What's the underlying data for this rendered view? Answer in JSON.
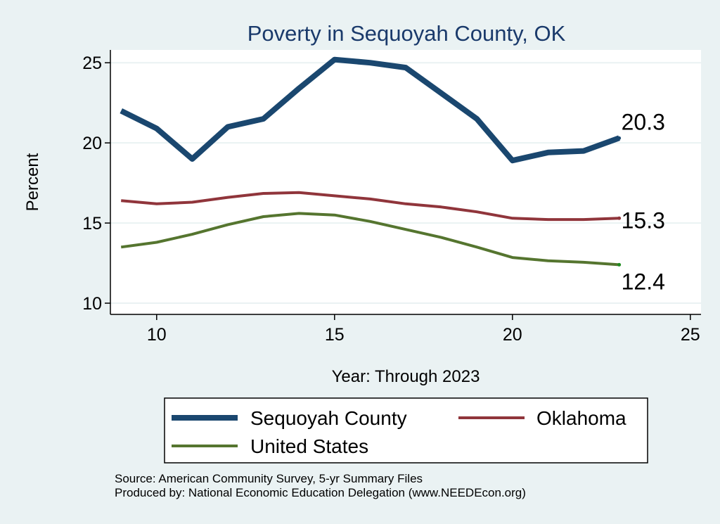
{
  "chart_data": {
    "type": "line",
    "title": "Poverty in Sequoyah County, OK",
    "xlabel": "Year: Through 2023",
    "ylabel": "Percent",
    "xlim": [
      8.7,
      25.3
    ],
    "ylim": [
      9.3,
      25.8
    ],
    "xticks": [
      10,
      15,
      20,
      25
    ],
    "yticks": [
      10,
      15,
      20,
      25
    ],
    "grid": true,
    "series": [
      {
        "name": "Sequoyah County",
        "color": "#1a476f",
        "x": [
          9,
          10,
          11,
          12,
          13,
          14,
          15,
          16,
          17,
          18,
          19,
          20,
          21,
          22,
          23
        ],
        "values": [
          22.0,
          20.9,
          19.0,
          21.0,
          21.5,
          23.4,
          25.2,
          25.0,
          24.7,
          23.1,
          21.5,
          18.9,
          19.4,
          19.5,
          20.3
        ],
        "end_label": "20.3"
      },
      {
        "name": "Oklahoma",
        "color": "#90353b",
        "x": [
          9,
          10,
          11,
          12,
          13,
          14,
          15,
          16,
          17,
          18,
          19,
          20,
          21,
          22,
          23
        ],
        "values": [
          16.4,
          16.2,
          16.3,
          16.6,
          16.85,
          16.9,
          16.7,
          16.5,
          16.2,
          16.0,
          15.7,
          15.3,
          15.22,
          15.22,
          15.3
        ],
        "end_label": "15.3"
      },
      {
        "name": "United States",
        "color": "#55752f",
        "x": [
          9,
          10,
          11,
          12,
          13,
          14,
          15,
          16,
          17,
          18,
          19,
          20,
          21,
          22,
          23
        ],
        "values": [
          13.5,
          13.8,
          14.3,
          14.9,
          15.4,
          15.6,
          15.5,
          15.1,
          14.6,
          14.1,
          13.5,
          12.85,
          12.65,
          12.55,
          12.4
        ],
        "end_label": "12.4"
      }
    ],
    "legend": [
      "Sequoyah County",
      "Oklahoma",
      "United States"
    ],
    "legend_position": "bottom"
  },
  "footer": {
    "source": "Source: American Community Survey, 5-yr Summary Files",
    "produced_by": "Produced by: National Economic Education Delegation (www.NEEDEcon.org)"
  }
}
